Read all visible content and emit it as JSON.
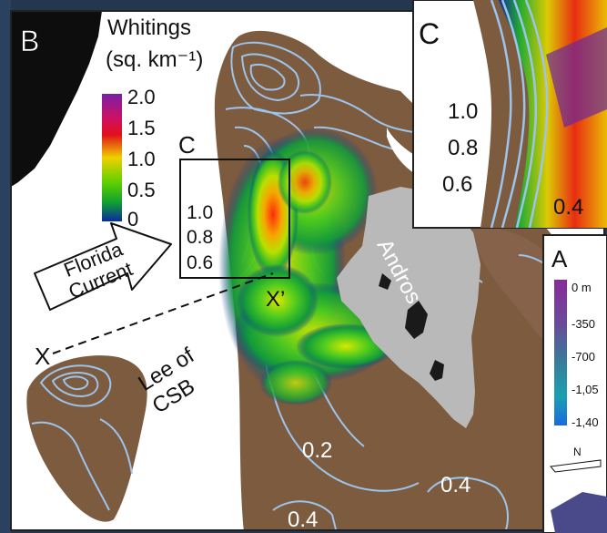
{
  "panel_b": {
    "letter": "B",
    "legend": {
      "title_line1": "Whitings",
      "title_line2": "(sq. km⁻¹)",
      "ticks": [
        "2.0",
        "1.5",
        "1.0",
        "0.5",
        "0"
      ],
      "colors": [
        "#7a1fa8",
        "#e0101a",
        "#f0d000",
        "#5ccf00",
        "#10a030",
        "#0a2aa0"
      ]
    },
    "inset_box_label": "C",
    "box_contours": [
      "1.0",
      "0.8",
      "0.6"
    ],
    "arrow_label_line1": "Florida",
    "arrow_label_line2": "Current",
    "transect_start": "X",
    "transect_end": "X’",
    "island_label": "Andros",
    "lee_label_line1": "Lee of",
    "lee_label_line2": "CSB",
    "contour_labels": [
      "0.2",
      "0.4",
      "0.4"
    ]
  },
  "panel_c": {
    "letter": "C",
    "contours": [
      "1.0",
      "0.8",
      "0.6",
      "0.4"
    ]
  },
  "panel_a": {
    "letter": "A",
    "depth_unit_top": "0 m",
    "depth_ticks": [
      "-350",
      "-700",
      "-1,05",
      "-1,40"
    ],
    "north": "N"
  },
  "colors": {
    "platform": "#7d5b3f",
    "platform_light": "#8f6a4a",
    "deep_water": "#ffffff",
    "contour": "#9cc4ec",
    "land": "#b9b9b9",
    "background": "#25364f"
  }
}
